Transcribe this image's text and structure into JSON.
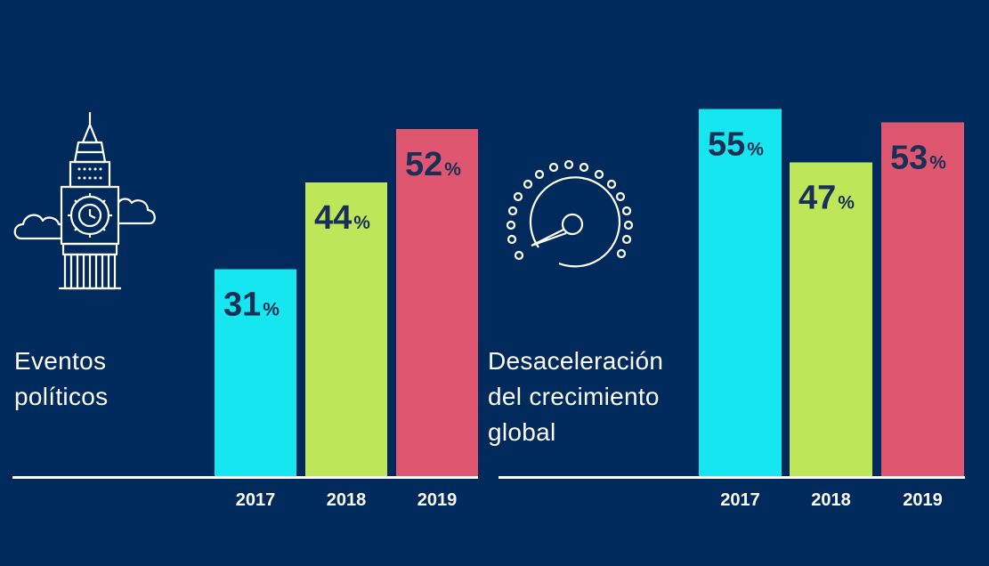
{
  "chart_data": [
    {
      "type": "bar",
      "title": "Eventos políticos",
      "title_lines": [
        "Eventos",
        "políticos"
      ],
      "icon": "big-ben-icon",
      "categories": [
        "2017",
        "2018",
        "2019"
      ],
      "values": [
        31,
        44,
        52
      ],
      "value_suffix": "%",
      "colors": [
        "#15e6f0",
        "#bde659",
        "#df5670"
      ],
      "ylim": [
        0,
        60
      ]
    },
    {
      "type": "bar",
      "title": "Desaceleración del crecimiento global",
      "title_lines": [
        "Desaceleración",
        "del crecimiento",
        "global"
      ],
      "icon": "speedometer-icon",
      "categories": [
        "2017",
        "2018",
        "2019"
      ],
      "values": [
        55,
        47,
        53
      ],
      "value_suffix": "%",
      "colors": [
        "#15e6f0",
        "#bde659",
        "#df5670"
      ],
      "ylim": [
        0,
        60
      ]
    }
  ]
}
